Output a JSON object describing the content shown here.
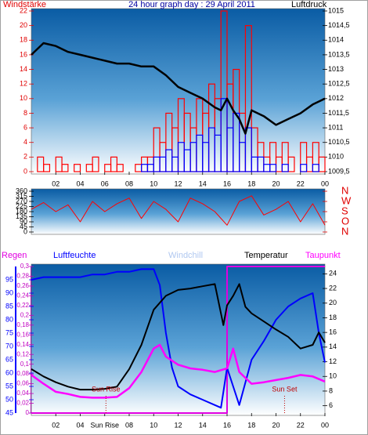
{
  "chart_data": [
    {
      "type": "combo",
      "title": "24 hour graph day : 29 April 2011",
      "left_label": "Windstärke",
      "right_label": "Luftdruck",
      "xlim": [
        0,
        24
      ],
      "xticks": [
        {
          "value": 2,
          "label": "02"
        },
        {
          "value": 4,
          "label": "04"
        },
        {
          "value": 6,
          "label": "06"
        },
        {
          "value": 8,
          "label": "08"
        },
        10,
        12,
        14,
        16,
        18,
        20,
        22,
        {
          "value": 24,
          "label": "00"
        }
      ],
      "ylim": [
        0,
        22
      ],
      "yticks": [
        0,
        2,
        4,
        6,
        8,
        10,
        12,
        14,
        16,
        18,
        20,
        22
      ],
      "y2lim": [
        1009.5,
        1015
      ],
      "y2ticks": [
        {
          "value": 1009.5,
          "label": "1009,5"
        },
        1010,
        {
          "value": 1010.5,
          "label": "1010,5"
        },
        1011,
        {
          "value": 1011.5,
          "label": "1011,5"
        },
        1012,
        {
          "value": 1012.5,
          "label": "1012,5"
        },
        1013,
        {
          "value": 1013.5,
          "label": "1013,5"
        },
        1014,
        {
          "value": 1014.5,
          "label": "1014,5"
        },
        1015
      ],
      "axis_colors": {
        "y": "#e00000",
        "y2": "#000000"
      },
      "series": [
        {
          "type": "bar",
          "color": "#ff0000",
          "width": 0.5,
          "x": [
            0,
            0.5,
            1,
            1.5,
            2,
            2.5,
            3,
            3.5,
            4,
            4.5,
            5,
            5.5,
            6,
            6.5,
            7,
            7.5,
            8,
            8.5,
            9,
            9.5,
            10,
            10.5,
            11,
            11.5,
            12,
            12.5,
            13,
            13.5,
            14,
            14.5,
            15,
            15.5,
            16,
            16.5,
            17,
            17.5,
            18,
            18.5,
            19,
            19.5,
            20,
            20.5,
            21,
            21.5,
            22,
            22.5,
            23,
            23.5
          ],
          "values": [
            0,
            2,
            1,
            0,
            2,
            1,
            0,
            1,
            0,
            1,
            2,
            0,
            1,
            2,
            1,
            0,
            0,
            1,
            2,
            2,
            6,
            4,
            8,
            6,
            10,
            8,
            6,
            10,
            8,
            12,
            10,
            22,
            12,
            14,
            8,
            20,
            6,
            4,
            2,
            4,
            2,
            4,
            2,
            0,
            4,
            2,
            4,
            2
          ]
        },
        {
          "type": "bar",
          "color": "#0000ff",
          "width": 0.5,
          "x": [
            0,
            0.5,
            1,
            1.5,
            2,
            2.5,
            3,
            3.5,
            4,
            4.5,
            5,
            5.5,
            6,
            6.5,
            7,
            7.5,
            8,
            8.5,
            9,
            9.5,
            10,
            10.5,
            11,
            11.5,
            12,
            12.5,
            13,
            13.5,
            14,
            14.5,
            15,
            15.5,
            16,
            16.5,
            17,
            17.5,
            18,
            18.5,
            19,
            19.5,
            20,
            20.5,
            21,
            21.5,
            22,
            22.5,
            23,
            23.5
          ],
          "values": [
            0,
            0,
            0,
            0,
            0,
            0,
            0,
            0,
            0,
            0,
            0,
            0,
            0,
            0,
            0,
            0,
            0,
            0,
            1,
            1,
            2,
            2,
            3,
            2,
            4,
            3,
            4,
            5,
            4,
            6,
            5,
            10,
            6,
            8,
            4,
            6,
            2,
            2,
            1,
            1,
            0,
            1,
            0,
            0,
            1,
            0,
            1,
            0
          ]
        },
        {
          "type": "line",
          "axis": "y2",
          "color": "#000000",
          "width": 2.5,
          "x": [
            0,
            1,
            2,
            3,
            4,
            5,
            6,
            7,
            8,
            9,
            10,
            11,
            12,
            13,
            14,
            15,
            15.5,
            16,
            16.5,
            17,
            17.5,
            18,
            19,
            20,
            21,
            22,
            23,
            24
          ],
          "values": [
            1013.5,
            1013.9,
            1013.8,
            1013.6,
            1013.5,
            1013.4,
            1013.3,
            1013.2,
            1013.2,
            1013.1,
            1013.1,
            1012.8,
            1012.4,
            1012.2,
            1012.0,
            1011.7,
            1011.6,
            1012.0,
            1011.6,
            1011.3,
            1010.8,
            1011.6,
            1011.4,
            1011.1,
            1011.3,
            1011.5,
            1011.8,
            1012.0
          ]
        }
      ]
    },
    {
      "type": "line",
      "xlim": [
        0,
        24
      ],
      "ylim": [
        0,
        360
      ],
      "yticks": [
        0,
        45,
        90,
        135,
        180,
        225,
        270,
        315,
        360
      ],
      "y2lim": [
        0,
        360
      ],
      "y2ticks": [
        {
          "value": 360,
          "label": "N"
        },
        {
          "value": 270,
          "label": "W"
        },
        {
          "value": 180,
          "label": "S"
        },
        {
          "value": 90,
          "label": "O"
        },
        {
          "value": 0,
          "label": "N"
        }
      ],
      "axis_colors": {
        "y": "#000000",
        "y2": "#e00000"
      },
      "series": [
        {
          "type": "line",
          "color": "#ff0000",
          "width": 1,
          "x": [
            0,
            1,
            2,
            3,
            4,
            5,
            6,
            7,
            8,
            9,
            10,
            11,
            12,
            13,
            14,
            15,
            16,
            17,
            18,
            19,
            20,
            21,
            22,
            23,
            24
          ],
          "values": [
            200,
            260,
            180,
            240,
            90,
            270,
            180,
            250,
            300,
            120,
            270,
            200,
            90,
            300,
            250,
            180,
            60,
            270,
            320,
            150,
            200,
            270,
            90,
            250,
            60
          ]
        }
      ]
    },
    {
      "type": "line",
      "xlim": [
        0,
        24
      ],
      "xticks": [
        {
          "value": 2,
          "label": "02"
        },
        {
          "value": 4,
          "label": "04"
        },
        {
          "value": 6,
          "label": "Sun Rise"
        },
        {
          "value": 8,
          "label": "08"
        },
        10,
        12,
        14,
        16,
        18,
        20,
        22,
        {
          "value": 24,
          "label": "00"
        }
      ],
      "ylim": [
        45,
        100
      ],
      "yticks": [
        45,
        50,
        55,
        60,
        65,
        70,
        75,
        80,
        85,
        90,
        95
      ],
      "y2lim": [
        5,
        25
      ],
      "y2ticks": [
        6,
        8,
        10,
        12,
        14,
        16,
        18,
        20,
        22,
        24
      ],
      "y3lim": [
        0,
        0.3
      ],
      "y3ticks": [
        0,
        {
          "value": 0.02,
          "label": "0,02"
        },
        {
          "value": 0.04,
          "label": "0,04"
        },
        {
          "value": 0.06,
          "label": "0,06"
        },
        {
          "value": 0.08,
          "label": "0,08"
        },
        {
          "value": 0.1,
          "label": "0,1"
        },
        {
          "value": 0.12,
          "label": "0,12"
        },
        {
          "value": 0.14,
          "label": "0,14"
        },
        {
          "value": 0.16,
          "label": "0,16"
        },
        {
          "value": 0.18,
          "label": "0,18"
        },
        {
          "value": 0.2,
          "label": "0,2"
        },
        {
          "value": 0.22,
          "label": "0,22"
        },
        {
          "value": 0.24,
          "label": "0,24"
        },
        {
          "value": 0.26,
          "label": "0,26"
        },
        {
          "value": 0.28,
          "label": "0,28"
        },
        {
          "value": 0.3,
          "label": "0,3"
        }
      ],
      "axis_colors": {
        "y": "#0000ff",
        "y2": "#000000",
        "y3": "#c000c0"
      },
      "windchill_label": "Windchill",
      "windchill_color": "#b0c8f0",
      "annotations": [
        {
          "text": "Sun Rise",
          "x": 6.1
        },
        {
          "text": "Sun Set",
          "x": 20.7
        }
      ],
      "series": [
        {
          "name": "Regen",
          "type": "line",
          "axis": "y3",
          "color": "#e000e0",
          "width": 2,
          "x": [
            0,
            16,
            16,
            24
          ],
          "values": [
            0,
            0,
            0.3,
            0.3
          ]
        },
        {
          "name": "Luftfeuchte",
          "type": "line",
          "axis": "y",
          "color": "#0000ff",
          "width": 2,
          "x": [
            0,
            1,
            2,
            3,
            4,
            5,
            6,
            7,
            8,
            9,
            10,
            10.5,
            11,
            11.5,
            12,
            13,
            14,
            15,
            15.5,
            16,
            16.5,
            17,
            18,
            19,
            20,
            21,
            22,
            23,
            23.5,
            24
          ],
          "values": [
            95,
            96,
            96,
            96,
            96,
            97,
            97,
            98,
            98,
            99,
            99,
            93,
            75,
            62,
            55,
            52,
            50,
            48,
            47,
            62,
            55,
            48,
            65,
            72,
            80,
            85,
            88,
            90,
            75,
            64
          ]
        },
        {
          "name": "Temperatur",
          "type": "line",
          "axis": "y2",
          "color": "#000000",
          "width": 2,
          "x": [
            0,
            1,
            2,
            3,
            4,
            5,
            6,
            7,
            8,
            9,
            10,
            11,
            12,
            13,
            14,
            15,
            15.7,
            16,
            16.5,
            17,
            17.5,
            18,
            19,
            20,
            21,
            22,
            23,
            23.5,
            24
          ],
          "values": [
            11,
            10,
            9.2,
            8.6,
            8.2,
            8.2,
            8.3,
            8.6,
            11,
            14.3,
            19.1,
            21,
            21.8,
            22,
            22.3,
            22.6,
            17,
            19.7,
            21,
            22.6,
            19.5,
            18.6,
            17.5,
            16.4,
            15.4,
            13.8,
            14.3,
            16,
            14.6
          ]
        },
        {
          "name": "Taupunkt",
          "type": "line",
          "axis": "y2",
          "color": "#ff00ff",
          "width": 2.5,
          "x": [
            0,
            1,
            2,
            3,
            4,
            5,
            6,
            7,
            8,
            9,
            10,
            10.5,
            11,
            12,
            13,
            14,
            15,
            16,
            16.5,
            17,
            18,
            19,
            20,
            21,
            22,
            23,
            24
          ],
          "values": [
            10.2,
            9,
            7.9,
            7.6,
            7.2,
            7.1,
            7.1,
            7.2,
            8.4,
            10.6,
            13.8,
            14.3,
            12.7,
            11.6,
            11.1,
            10.9,
            10.6,
            11.1,
            13.8,
            10.6,
            9,
            9.2,
            9.5,
            9.8,
            10.2,
            10,
            9.3
          ]
        }
      ]
    }
  ]
}
